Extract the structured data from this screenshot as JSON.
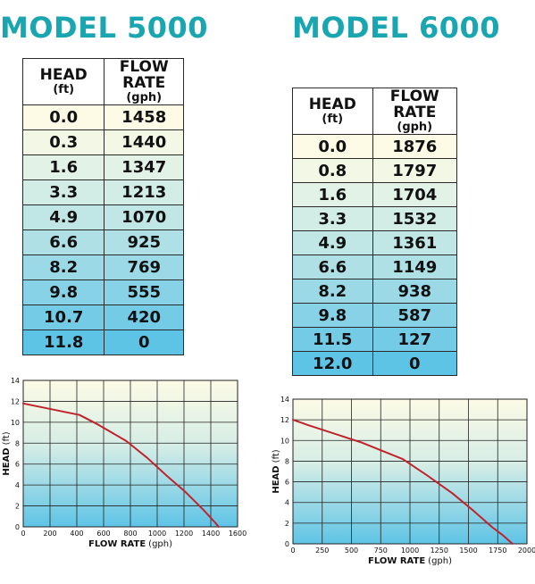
{
  "models": [
    {
      "id": "5000",
      "title": "MODEL 5000",
      "table": {
        "head_label": "HEAD",
        "head_unit": "(ft)",
        "flow_label": "FLOW RATE",
        "flow_unit": "(gph)",
        "rows": [
          {
            "head": "0.0",
            "flow": "1458"
          },
          {
            "head": "0.3",
            "flow": "1440"
          },
          {
            "head": "1.6",
            "flow": "1347"
          },
          {
            "head": "3.3",
            "flow": "1213"
          },
          {
            "head": "4.9",
            "flow": "1070"
          },
          {
            "head": "6.6",
            "flow": "925"
          },
          {
            "head": "8.2",
            "flow": "769"
          },
          {
            "head": "9.8",
            "flow": "555"
          },
          {
            "head": "10.7",
            "flow": "420"
          },
          {
            "head": "11.8",
            "flow": "0"
          }
        ]
      }
    },
    {
      "id": "6000",
      "title": "MODEL 6000",
      "table": {
        "head_label": "HEAD",
        "head_unit": "(ft)",
        "flow_label": "FLOW RATE",
        "flow_unit": "(gph)",
        "rows": [
          {
            "head": "0.0",
            "flow": "1876"
          },
          {
            "head": "0.8",
            "flow": "1797"
          },
          {
            "head": "1.6",
            "flow": "1704"
          },
          {
            "head": "3.3",
            "flow": "1532"
          },
          {
            "head": "4.9",
            "flow": "1361"
          },
          {
            "head": "6.6",
            "flow": "1149"
          },
          {
            "head": "8.2",
            "flow": "938"
          },
          {
            "head": "9.8",
            "flow": "587"
          },
          {
            "head": "11.5",
            "flow": "127"
          },
          {
            "head": "12.0",
            "flow": "0"
          }
        ]
      }
    }
  ],
  "colors": {
    "title": "#1aa6b0",
    "curve": "#c0232b",
    "cell_top": "#fdfbe6",
    "cell_bottom": "#5ec4e6",
    "grid": "#222222"
  },
  "chart_data": [
    {
      "type": "line",
      "title": "",
      "xlabel": "FLOW RATE",
      "xlabel_unit": "(gph)",
      "ylabel": "HEAD",
      "ylabel_unit": "(ft)",
      "xlim": [
        0,
        1600
      ],
      "ylim": [
        0,
        14
      ],
      "x_ticks": [
        "0",
        "200",
        "400",
        "600",
        "800",
        "1000",
        "1200",
        "1400",
        "1600"
      ],
      "y_ticks": [
        "0",
        "2",
        "4",
        "6",
        "8",
        "10",
        "12",
        "14"
      ],
      "grid": true,
      "series": [
        {
          "x": [
            0,
            420,
            555,
            769,
            925,
            1070,
            1213,
            1347,
            1440,
            1458
          ],
          "y": [
            11.8,
            10.7,
            9.8,
            8.2,
            6.6,
            4.9,
            3.3,
            1.6,
            0.3,
            0.0
          ]
        }
      ]
    },
    {
      "type": "line",
      "title": "",
      "xlabel": "FLOW RATE",
      "xlabel_unit": "(gph)",
      "ylabel": "HEAD",
      "ylabel_unit": "(ft)",
      "xlim": [
        0,
        2000
      ],
      "ylim": [
        0,
        14
      ],
      "x_ticks": [
        "0",
        "250",
        "500",
        "750",
        "1000",
        "1250",
        "1500",
        "1750",
        "2000"
      ],
      "y_ticks": [
        "0",
        "2",
        "4",
        "6",
        "8",
        "10",
        "12",
        "14"
      ],
      "grid": true,
      "series": [
        {
          "x": [
            0,
            127,
            587,
            938,
            1149,
            1361,
            1532,
            1704,
            1797,
            1876
          ],
          "y": [
            12.0,
            11.5,
            9.8,
            8.2,
            6.6,
            4.9,
            3.3,
            1.6,
            0.8,
            0.0
          ]
        }
      ]
    }
  ]
}
